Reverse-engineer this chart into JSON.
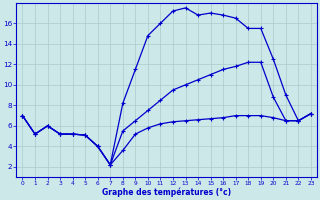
{
  "xlabel": "Graphe des températures (°c)",
  "bg_color": "#cce8e8",
  "line_color": "#0000cc",
  "grid_color": "#aacccc",
  "xlim": [
    -0.5,
    23.5
  ],
  "ylim": [
    1,
    18
  ],
  "xticks": [
    0,
    1,
    2,
    3,
    4,
    5,
    6,
    7,
    8,
    9,
    10,
    11,
    12,
    13,
    14,
    15,
    16,
    17,
    18,
    19,
    20,
    21,
    22,
    23
  ],
  "yticks": [
    2,
    4,
    6,
    8,
    10,
    12,
    14,
    16
  ],
  "series_max_x": [
    0,
    1,
    2,
    3,
    4,
    5,
    6,
    7,
    8,
    9,
    10,
    11,
    12,
    13,
    14,
    15,
    16,
    17,
    18,
    19,
    20,
    21,
    22,
    23
  ],
  "series_max_y": [
    7.0,
    5.2,
    6.0,
    5.2,
    5.2,
    5.1,
    4.0,
    2.2,
    8.2,
    11.5,
    14.8,
    16.0,
    17.2,
    17.5,
    16.8,
    17.0,
    16.8,
    16.5,
    15.5,
    15.5,
    12.5,
    9.0,
    6.5,
    7.2
  ],
  "series_mean_x": [
    0,
    1,
    2,
    3,
    4,
    5,
    6,
    7,
    8,
    9,
    10,
    11,
    12,
    13,
    14,
    15,
    16,
    17,
    18,
    19,
    20,
    21,
    22,
    23
  ],
  "series_mean_y": [
    7.0,
    5.2,
    6.0,
    5.2,
    5.2,
    5.1,
    4.0,
    2.2,
    5.5,
    6.5,
    7.5,
    8.5,
    9.5,
    10.0,
    10.5,
    11.0,
    11.5,
    11.8,
    12.2,
    12.2,
    8.8,
    6.5,
    6.5,
    7.2
  ],
  "series_min_x": [
    0,
    1,
    2,
    3,
    4,
    5,
    6,
    7,
    8,
    9,
    10,
    11,
    12,
    13,
    14,
    15,
    16,
    17,
    18,
    19,
    20,
    21,
    22,
    23
  ],
  "series_min_y": [
    7.0,
    5.2,
    6.0,
    5.2,
    5.2,
    5.1,
    4.0,
    2.2,
    3.6,
    5.2,
    5.8,
    6.2,
    6.4,
    6.5,
    6.6,
    6.7,
    6.8,
    7.0,
    7.0,
    7.0,
    6.8,
    6.5,
    6.5,
    7.2
  ]
}
